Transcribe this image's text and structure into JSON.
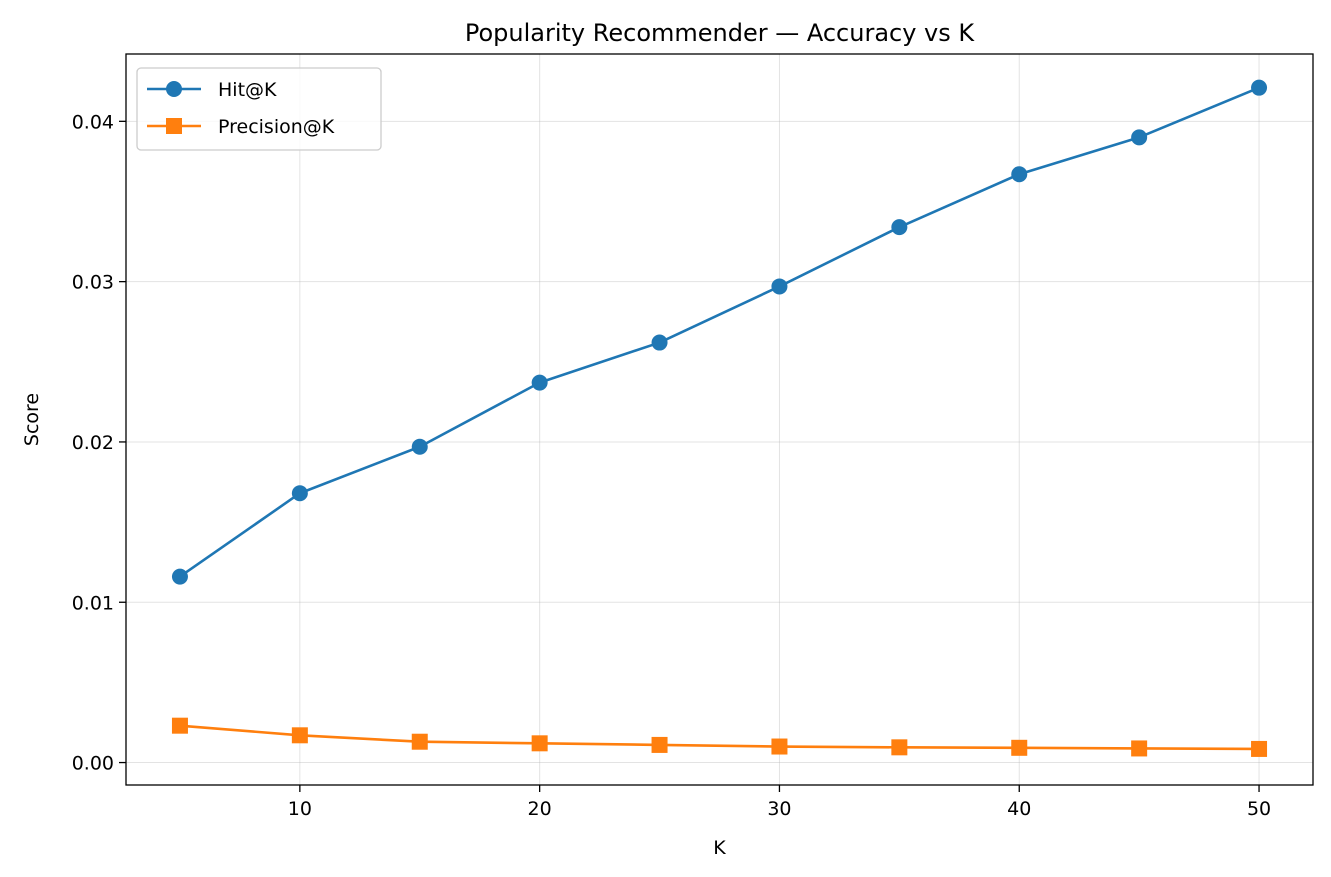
{
  "chart_data": {
    "type": "line",
    "title": "Popularity Recommender — Accuracy vs K",
    "xlabel": "K",
    "ylabel": "Score",
    "x": [
      5,
      10,
      15,
      20,
      25,
      30,
      35,
      40,
      45,
      50
    ],
    "xlim": [
      2.75,
      52.25
    ],
    "ylim": [
      -0.0014,
      0.0442
    ],
    "xticks": [
      10,
      20,
      30,
      40,
      50
    ],
    "xtick_labels": [
      "10",
      "20",
      "30",
      "40",
      "50"
    ],
    "yticks": [
      0.0,
      0.01,
      0.02,
      0.03,
      0.04
    ],
    "ytick_labels": [
      "0.00",
      "0.01",
      "0.02",
      "0.03",
      "0.04"
    ],
    "grid": true,
    "legend_position": "upper-left",
    "series": [
      {
        "name": "Hit@K",
        "color": "#1f77b4",
        "marker": "circle",
        "values": [
          0.0116,
          0.0168,
          0.0197,
          0.0237,
          0.0262,
          0.0297,
          0.0334,
          0.0367,
          0.039,
          0.0421
        ]
      },
      {
        "name": "Precision@K",
        "color": "#ff7f0e",
        "marker": "square",
        "values": [
          0.0023,
          0.0017,
          0.0013,
          0.0012,
          0.0011,
          0.001,
          0.00095,
          0.00092,
          0.00088,
          0.00085
        ]
      }
    ]
  }
}
